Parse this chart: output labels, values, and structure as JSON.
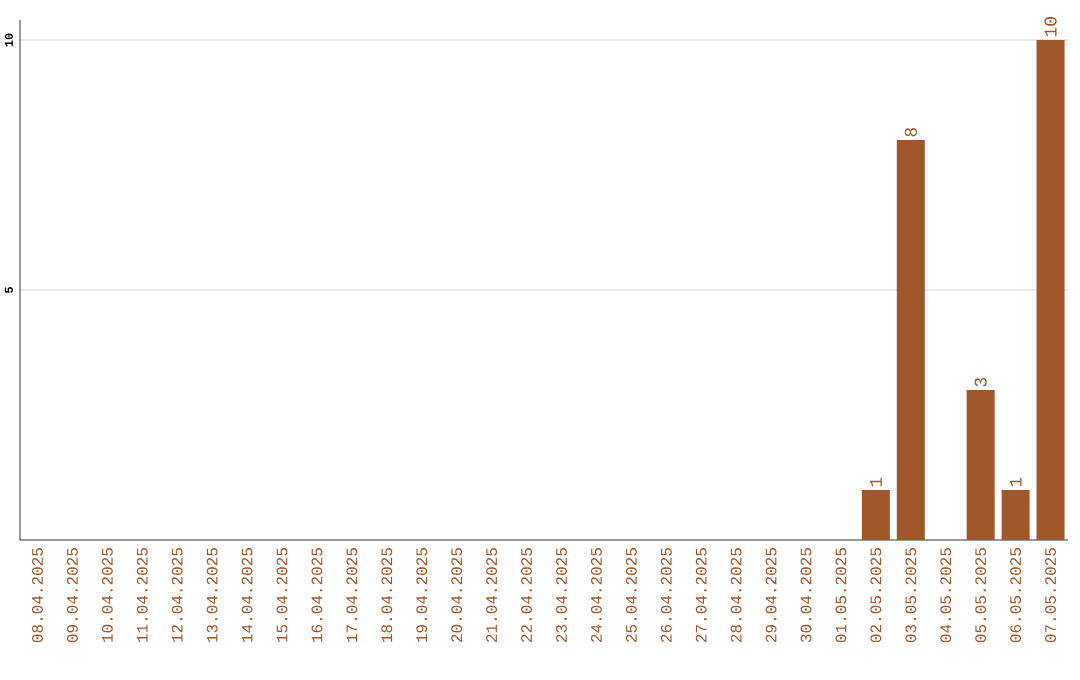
{
  "chart_data": {
    "type": "bar",
    "categories": [
      "08.04.2025",
      "09.04.2025",
      "10.04.2025",
      "11.04.2025",
      "12.04.2025",
      "13.04.2025",
      "14.04.2025",
      "15.04.2025",
      "16.04.2025",
      "17.04.2025",
      "18.04.2025",
      "19.04.2025",
      "20.04.2025",
      "21.04.2025",
      "22.04.2025",
      "23.04.2025",
      "24.04.2025",
      "25.04.2025",
      "26.04.2025",
      "27.04.2025",
      "28.04.2025",
      "29.04.2025",
      "30.04.2025",
      "01.05.2025",
      "02.05.2025",
      "03.05.2025",
      "04.05.2025",
      "05.05.2025",
      "06.05.2025",
      "07.05.2025"
    ],
    "values": [
      0,
      0,
      0,
      0,
      0,
      0,
      0,
      0,
      0,
      0,
      0,
      0,
      0,
      0,
      0,
      0,
      0,
      0,
      0,
      0,
      0,
      0,
      0,
      0,
      1,
      8,
      0,
      3,
      1,
      10
    ],
    "value_labels": [
      null,
      null,
      null,
      null,
      null,
      null,
      null,
      null,
      null,
      null,
      null,
      null,
      null,
      null,
      null,
      null,
      null,
      null,
      null,
      null,
      null,
      null,
      null,
      null,
      "1",
      "8",
      null,
      "3",
      "1",
      "10"
    ],
    "color": "#a0572a",
    "ylim": [
      0,
      10.4
    ],
    "yticks": [
      5,
      10
    ],
    "grid": "y"
  }
}
